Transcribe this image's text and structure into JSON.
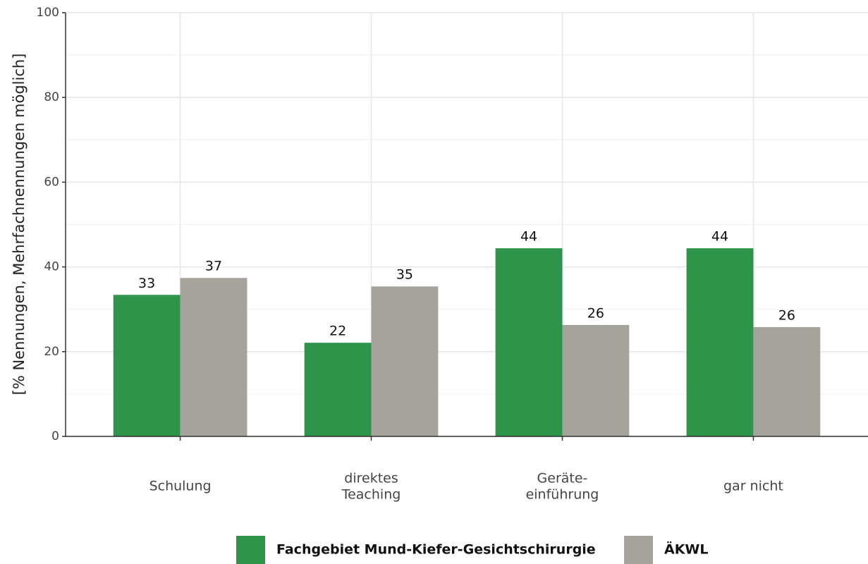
{
  "chart_data": {
    "type": "bar",
    "categories": [
      "Schulung",
      "direktes\nTeaching",
      "Geräte-\neinführung",
      "gar nicht"
    ],
    "series": [
      {
        "name": "Fachgebiet Mund-Kiefer-Gesichtschirurgie",
        "color": "#2e9449",
        "values": [
          33.4,
          22.1,
          44.4,
          44.4
        ],
        "value_labels": [
          "33",
          "22",
          "44",
          "44"
        ]
      },
      {
        "name": "ÄKWL",
        "color": "#a6a39c",
        "values": [
          37.4,
          35.4,
          26.3,
          25.8
        ],
        "value_labels": [
          "37",
          "35",
          "26",
          "26"
        ]
      }
    ],
    "y_label": "[% Nennungen, Mehrfachnennungen möglich]",
    "ylim": [
      0,
      100
    ],
    "yticks": [
      0,
      20,
      40,
      60,
      80,
      100
    ],
    "grid": true,
    "legend": "bottom"
  }
}
